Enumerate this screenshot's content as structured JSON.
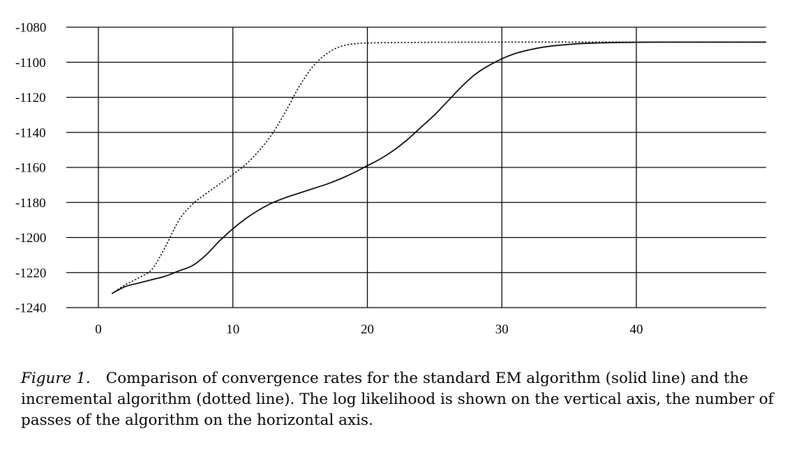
{
  "chart_data": {
    "type": "line",
    "title": "",
    "xlabel": "",
    "ylabel": "",
    "xlim": [
      0,
      50
    ],
    "ylim": [
      -1240,
      -1080
    ],
    "xticks": [
      0,
      10,
      20,
      30,
      40
    ],
    "yticks": [
      -1080,
      -1100,
      -1120,
      -1140,
      -1160,
      -1180,
      -1200,
      -1220,
      -1240
    ],
    "grid": true,
    "series": [
      {
        "style": "solid",
        "x": [
          1,
          2,
          3,
          4,
          5,
          6,
          7,
          8,
          9,
          10,
          11,
          12,
          13,
          14,
          15,
          16,
          17,
          18,
          19,
          20,
          21,
          22,
          23,
          24,
          25,
          26,
          27,
          28,
          29,
          30,
          31,
          32,
          33,
          34,
          35,
          36,
          37,
          38,
          40,
          42,
          45,
          50
        ],
        "y": [
          -1232,
          -1228,
          -1226,
          -1224,
          -1222,
          -1219,
          -1216,
          -1210,
          -1202,
          -1195,
          -1189,
          -1184,
          -1180,
          -1177,
          -1174.5,
          -1172,
          -1169.5,
          -1166.5,
          -1163,
          -1159,
          -1155,
          -1150,
          -1144,
          -1137,
          -1130,
          -1122,
          -1114,
          -1107,
          -1102,
          -1098,
          -1095,
          -1093,
          -1091.5,
          -1090.5,
          -1089.8,
          -1089.3,
          -1089,
          -1088.8,
          -1088.6,
          -1088.5,
          -1088.5,
          -1088.5
        ]
      },
      {
        "style": "dotted",
        "x": [
          1,
          2,
          3,
          4,
          5,
          6,
          7,
          8,
          9,
          10,
          11,
          12,
          13,
          14,
          15,
          16,
          17,
          18,
          19,
          20,
          22,
          25,
          30,
          40,
          50
        ],
        "y": [
          -1232,
          -1227,
          -1223,
          -1218,
          -1205,
          -1190,
          -1181,
          -1175,
          -1169.5,
          -1164,
          -1158,
          -1150,
          -1140,
          -1127,
          -1113,
          -1102,
          -1095,
          -1091,
          -1089.5,
          -1089,
          -1088.8,
          -1088.6,
          -1088.5,
          -1088.5,
          -1088.5
        ]
      }
    ]
  },
  "caption": {
    "label": "Figure 1.",
    "text": "Comparison of convergence rates for the standard EM algorithm (solid line) and the incremental algorithm (dotted line). The log likelihood is shown on the vertical axis, the number of passes of the algorithm on the horizontal axis."
  }
}
